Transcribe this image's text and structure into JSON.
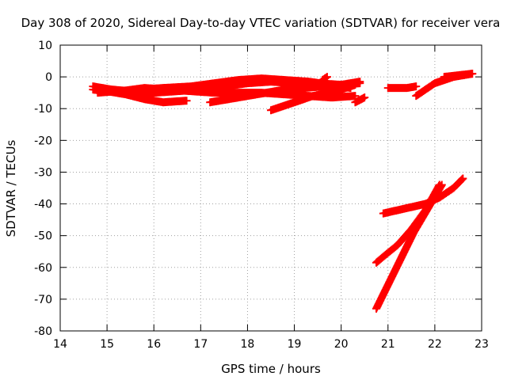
{
  "chart_data": {
    "type": "scatter",
    "title": "Day 308 of 2020, Sidereal Day-to-day VTEC variation (SDTVAR) for receiver vera",
    "xlabel": "GPS time / hours",
    "ylabel": "SDTVAR / TECUs",
    "xlim": [
      14,
      23
    ],
    "ylim": [
      -80,
      10
    ],
    "xticks": [
      14,
      15,
      16,
      17,
      18,
      19,
      20,
      21,
      22,
      23
    ],
    "yticks": [
      -80,
      -70,
      -60,
      -50,
      -40,
      -30,
      -20,
      -10,
      0,
      10
    ],
    "grid": true,
    "marker": "plus",
    "color": "#ff0000",
    "series": [
      {
        "x": [
          14.7,
          15.0,
          15.4,
          15.8,
          16.2,
          16.7
        ],
        "y": [
          -4,
          -4.5,
          -5.5,
          -7,
          -8,
          -7.5
        ]
      },
      {
        "x": [
          14.7,
          15.1,
          15.5,
          16.0,
          16.5,
          17.0,
          17.5,
          18.0,
          18.5,
          19.0,
          19.5,
          20.0,
          20.4
        ],
        "y": [
          -3,
          -4,
          -4.5,
          -5,
          -4.5,
          -4,
          -3,
          -2,
          -1.5,
          -2,
          -2,
          -2.5,
          -1.5
        ]
      },
      {
        "x": [
          14.8,
          15.2,
          15.7,
          16.2,
          16.8,
          17.3,
          17.8,
          18.3,
          18.8,
          19.3,
          19.8,
          20.2
        ],
        "y": [
          -5,
          -4.5,
          -4,
          -3.5,
          -3,
          -2,
          -1,
          -0.5,
          -1,
          -1.5,
          -2.5,
          -3.5
        ]
      },
      {
        "x": [
          15.3,
          15.8,
          16.3,
          16.8,
          17.3,
          17.8,
          18.3,
          18.8,
          19.3,
          19.8,
          20.3
        ],
        "y": [
          -4.5,
          -3.5,
          -4,
          -4.5,
          -5,
          -5,
          -5,
          -5.5,
          -6,
          -6.5,
          -6
        ]
      },
      {
        "x": [
          17.2,
          17.6,
          18.0,
          18.4,
          18.8,
          19.2,
          19.6,
          20.0,
          20.4
        ],
        "y": [
          -8,
          -7,
          -6,
          -5,
          -4,
          -3.5,
          -3,
          -2.5,
          -2
        ]
      },
      {
        "x": [
          18.5,
          18.8,
          19.1,
          19.4,
          19.7,
          20.0,
          20.3
        ],
        "y": [
          -10.5,
          -9,
          -7.5,
          -6,
          -5,
          -4,
          -2.5
        ]
      },
      {
        "x": [
          19.6,
          19.7
        ],
        "y": [
          -1,
          0
        ]
      },
      {
        "x": [
          20.3,
          20.5
        ],
        "y": [
          -8,
          -6.5
        ]
      },
      {
        "x": [
          21.0,
          21.2,
          21.4,
          21.6
        ],
        "y": [
          -3.5,
          -3.5,
          -3.5,
          -3
        ]
      },
      {
        "x": [
          21.6,
          21.8,
          22.0,
          22.2,
          22.4,
          22.6,
          22.8
        ],
        "y": [
          -6,
          -4,
          -2,
          -1,
          0,
          0.5,
          1
        ]
      },
      {
        "x": [
          22.2,
          22.5,
          22.8
        ],
        "y": [
          0,
          0.5,
          1
        ]
      },
      {
        "x": [
          20.9,
          21.2,
          21.5,
          21.8,
          22.1,
          22.4,
          22.6
        ],
        "y": [
          -43,
          -42,
          -41,
          -40,
          -38,
          -35,
          -32
        ]
      },
      {
        "x": [
          20.75,
          20.95,
          21.2,
          21.5,
          21.8,
          22.1
        ],
        "y": [
          -58.5,
          -56,
          -53,
          -48,
          -42,
          -34
        ]
      },
      {
        "x": [
          20.75,
          20.95,
          21.15,
          21.35,
          21.55,
          21.75,
          21.95,
          22.15
        ],
        "y": [
          -73,
          -67,
          -61,
          -55,
          -49,
          -44,
          -39,
          -34
        ]
      }
    ]
  }
}
